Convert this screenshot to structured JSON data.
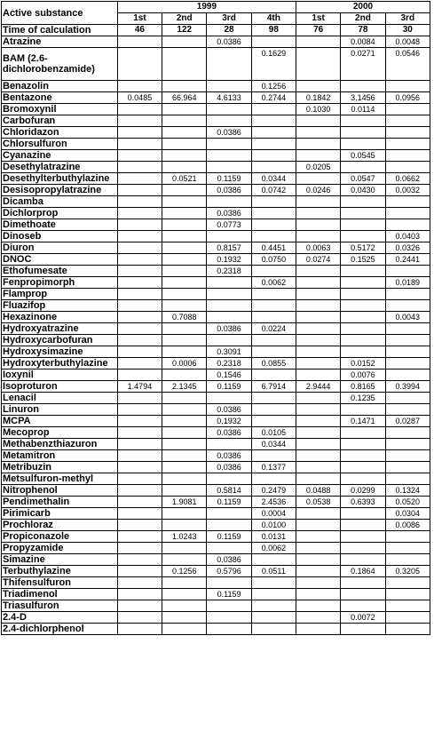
{
  "header": {
    "col_label": "Active substance",
    "time_label": "Time of calculation",
    "years": [
      {
        "label": "1999",
        "span": 4
      },
      {
        "label": "2000",
        "span": 3
      }
    ],
    "periods": [
      "1st",
      "2nd",
      "3rd",
      "4th",
      "1st",
      "2nd",
      "3rd"
    ],
    "times": [
      "46",
      "122",
      "28",
      "98",
      "76",
      "78",
      "30"
    ]
  },
  "rows": [
    {
      "name": "Atrazine",
      "values": [
        "",
        "",
        "0.0386",
        "",
        "",
        "0.0084",
        "0.0048"
      ]
    },
    {
      "name": "BAM (2.6-dichlorobenzamide)",
      "values": [
        "",
        "",
        "",
        "0.1629",
        "",
        "0.0271",
        "0.0546"
      ],
      "tall": true
    },
    {
      "name": "Benazolin",
      "values": [
        "",
        "",
        "",
        "0.1256",
        "",
        "",
        ""
      ]
    },
    {
      "name": "Bentazone",
      "values": [
        "0.0485",
        "66.964",
        "4.6133",
        "0.2744",
        "0.1842",
        "3.1456",
        "0.0956"
      ]
    },
    {
      "name": "Bromoxynil",
      "values": [
        "",
        "",
        "",
        "",
        "0.1030",
        "0.0114",
        ""
      ]
    },
    {
      "name": "Carbofuran",
      "values": [
        "",
        "",
        "",
        "",
        "",
        "",
        ""
      ]
    },
    {
      "name": "Chloridazon",
      "values": [
        "",
        "",
        "0.0386",
        "",
        "",
        "",
        ""
      ]
    },
    {
      "name": "Chlorsulfuron",
      "values": [
        "",
        "",
        "",
        "",
        "",
        "",
        ""
      ]
    },
    {
      "name": "Cyanazine",
      "values": [
        "",
        "",
        "",
        "",
        "",
        "0.0545",
        ""
      ]
    },
    {
      "name": "Desethylatrazine",
      "values": [
        "",
        "",
        "",
        "",
        "0.0205",
        "",
        ""
      ]
    },
    {
      "name": "Desethylterbuthylazine",
      "values": [
        "",
        "0.0521",
        "0.1159",
        "0.0344",
        "",
        "0.0547",
        "0.0662"
      ]
    },
    {
      "name": "Desisopropylatrazine",
      "values": [
        "",
        "",
        "0.0386",
        "0.0742",
        "0.0246",
        "0.0430",
        "0.0032"
      ]
    },
    {
      "name": "Dicamba",
      "values": [
        "",
        "",
        "",
        "",
        "",
        "",
        ""
      ]
    },
    {
      "name": "Dichlorprop",
      "values": [
        "",
        "",
        "0.0386",
        "",
        "",
        "",
        ""
      ]
    },
    {
      "name": "Dimethoate",
      "values": [
        "",
        "",
        "0.0773",
        "",
        "",
        "",
        ""
      ]
    },
    {
      "name": "Dinoseb",
      "values": [
        "",
        "",
        "",
        "",
        "",
        "",
        "0.0403"
      ]
    },
    {
      "name": "Diuron",
      "values": [
        "",
        "",
        "0.8157",
        "0.4451",
        "0.0063",
        "0.5172",
        "0.0326"
      ]
    },
    {
      "name": "DNOC",
      "values": [
        "",
        "",
        "0.1932",
        "0.0750",
        "0.0274",
        "0.1525",
        "0.2441"
      ]
    },
    {
      "name": "Ethofumesate",
      "values": [
        "",
        "",
        "0.2318",
        "",
        "",
        "",
        ""
      ]
    },
    {
      "name": "Fenpropimorph",
      "values": [
        "",
        "",
        "",
        "0.0062",
        "",
        "",
        "0.0189"
      ]
    },
    {
      "name": "Flamprop",
      "values": [
        "",
        "",
        "",
        "",
        "",
        "",
        ""
      ]
    },
    {
      "name": "Fluazifop",
      "values": [
        "",
        "",
        "",
        "",
        "",
        "",
        ""
      ]
    },
    {
      "name": "Hexazinone",
      "values": [
        "",
        "0.7088",
        "",
        "",
        "",
        "",
        "0.0043"
      ]
    },
    {
      "name": "Hydroxyatrazine",
      "values": [
        "",
        "",
        "0.0386",
        "0.0224",
        "",
        "",
        ""
      ]
    },
    {
      "name": "Hydroxycarbofuran",
      "values": [
        "",
        "",
        "",
        "",
        "",
        "",
        ""
      ]
    },
    {
      "name": "Hydroxysimazine",
      "values": [
        "",
        "",
        "0.3091",
        "",
        "",
        "",
        ""
      ]
    },
    {
      "name": "Hydroxyterbuthylazine",
      "values": [
        "",
        "0.0006",
        "0.2318",
        "0.0855",
        "",
        "0.0152",
        ""
      ]
    },
    {
      "name": "Ioxynil",
      "values": [
        "",
        "",
        "0.1546",
        "",
        "",
        "0.0076",
        ""
      ]
    },
    {
      "name": "Isoproturon",
      "values": [
        "1.4794",
        "2.1345",
        "0.1159",
        "6.7914",
        "2.9444",
        "0.8165",
        "0.3994"
      ]
    },
    {
      "name": "Lenacil",
      "values": [
        "",
        "",
        "",
        "",
        "",
        "0.1235",
        ""
      ]
    },
    {
      "name": "Linuron",
      "values": [
        "",
        "",
        "0.0386",
        "",
        "",
        "",
        ""
      ]
    },
    {
      "name": "MCPA",
      "values": [
        "",
        "",
        "0.1932",
        "",
        "",
        "0.1471",
        "0.0287"
      ]
    },
    {
      "name": "Mecoprop",
      "values": [
        "",
        "",
        "0.0386",
        "0.0105",
        "",
        "",
        ""
      ]
    },
    {
      "name": "Methabenzthiazuron",
      "values": [
        "",
        "",
        "",
        "0.0344",
        "",
        "",
        ""
      ]
    },
    {
      "name": "Metamitron",
      "values": [
        "",
        "",
        "0.0386",
        "",
        "",
        "",
        ""
      ]
    },
    {
      "name": "Metribuzin",
      "values": [
        "",
        "",
        "0.0386",
        "0.1377",
        "",
        "",
        ""
      ]
    },
    {
      "name": "Metsulfuron-methyl",
      "values": [
        "",
        "",
        "",
        "",
        "",
        "",
        ""
      ]
    },
    {
      "name": "Nitrophenol",
      "values": [
        "",
        "",
        "0.5814",
        "0.2479",
        "0.0488",
        "0.0299",
        "0.1324"
      ]
    },
    {
      "name": "Pendimethalin",
      "values": [
        "",
        "1.9081",
        "0.1159",
        "2.4536",
        "0.0538",
        "0.6393",
        "0.0520"
      ]
    },
    {
      "name": "Pirimicarb",
      "values": [
        "",
        "",
        "",
        "0.0004",
        "",
        "",
        "0.0304"
      ]
    },
    {
      "name": "Prochloraz",
      "values": [
        "",
        "",
        "",
        "0.0100",
        "",
        "",
        "0.0086"
      ]
    },
    {
      "name": "Propiconazole",
      "values": [
        "",
        "1.0243",
        "0.1159",
        "0.0131",
        "",
        "",
        ""
      ]
    },
    {
      "name": "Propyzamide",
      "values": [
        "",
        "",
        "",
        "0.0062",
        "",
        "",
        ""
      ]
    },
    {
      "name": "Simazine",
      "values": [
        "",
        "",
        "0.0386",
        "",
        "",
        "",
        ""
      ]
    },
    {
      "name": "Terbuthylazine",
      "values": [
        "",
        "0.1256",
        "0.5796",
        "0.0511",
        "",
        "0.1864",
        "0.3205"
      ]
    },
    {
      "name": "Thifensulfuron",
      "values": [
        "",
        "",
        "",
        "",
        "",
        "",
        ""
      ]
    },
    {
      "name": "Triadimenol",
      "values": [
        "",
        "",
        "0.1159",
        "",
        "",
        "",
        ""
      ]
    },
    {
      "name": "Triasulfuron",
      "values": [
        "",
        "",
        "",
        "",
        "",
        "",
        ""
      ]
    },
    {
      "name": "2.4-D",
      "values": [
        "",
        "",
        "",
        "",
        "",
        "0.0072",
        ""
      ]
    },
    {
      "name": "2.4-dichlorphenol",
      "values": [
        "",
        "",
        "",
        "",
        "",
        "",
        ""
      ]
    }
  ]
}
